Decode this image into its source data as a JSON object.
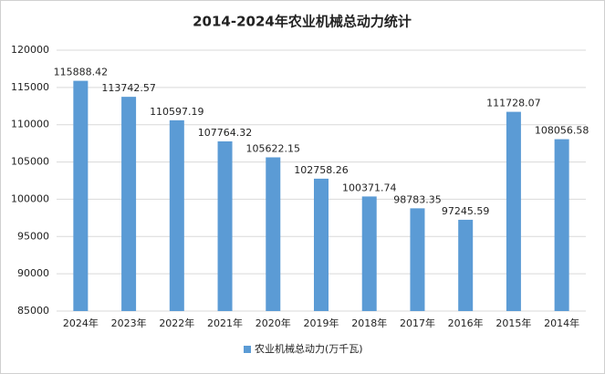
{
  "chart_data": {
    "type": "bar",
    "title": "2014-2024年农业机械总动力统计",
    "categories": [
      "2024年",
      "2023年",
      "2022年",
      "2021年",
      "2020年",
      "2019年",
      "2018年",
      "2017年",
      "2016年",
      "2015年",
      "2014年"
    ],
    "series": [
      {
        "name": "农业机械总动力(万千瓦)",
        "color": "#5b9bd5",
        "values": [
          115888.42,
          113742.57,
          110597.19,
          107764.32,
          105622.15,
          102758.26,
          100371.74,
          98783.35,
          97245.59,
          111728.07,
          108056.58
        ]
      }
    ],
    "ylim": [
      85000,
      120000
    ],
    "yticks": [
      85000,
      90000,
      95000,
      100000,
      105000,
      110000,
      115000,
      120000
    ],
    "grid": true,
    "legend": "bottom"
  }
}
